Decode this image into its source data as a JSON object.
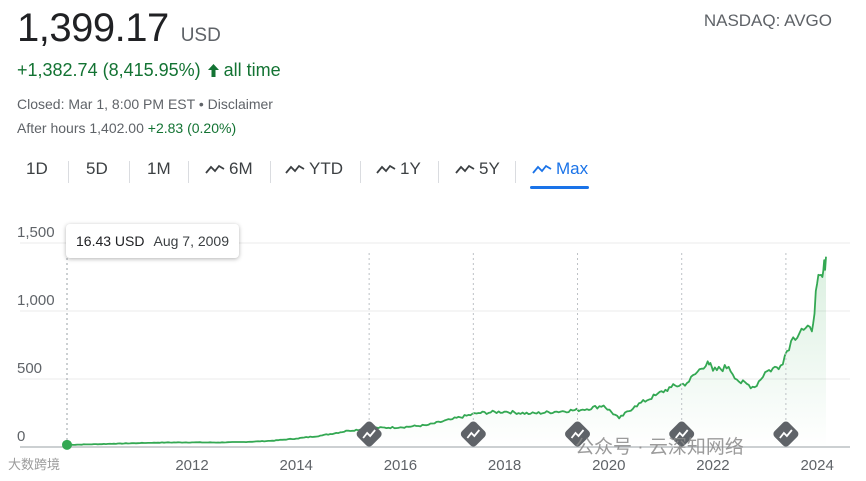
{
  "header": {
    "price": "1,399.17",
    "currency": "USD",
    "exchange": "NASDAQ: AVGO",
    "change": "+1,382.74 (8,415.95%)",
    "change_period": "all time",
    "closed_line": "Closed: Mar 1, 8:00 PM EST • Disclaimer",
    "after_hours_prefix": "After hours 1,402.00",
    "after_hours_change": "+2.83 (0.20%)"
  },
  "tabs": [
    "1D",
    "5D",
    "1M",
    "6M",
    "YTD",
    "1Y",
    "5Y",
    "Max"
  ],
  "active_tab": "Max",
  "tooltip": {
    "price": "16.43 USD",
    "date": "Aug 7, 2009"
  },
  "watermarks": {
    "left": "大数跨境",
    "right": "公众号 · 云深知网络"
  },
  "colors": {
    "line": "#34a853",
    "positive": "#137333",
    "accent": "#1a73e8"
  },
  "chart_data": {
    "type": "area",
    "title": "",
    "xlabel": "",
    "ylabel": "",
    "xlim": [
      2009.6,
      2024.17
    ],
    "ylim": [
      0,
      1500
    ],
    "yticks": [
      0,
      500,
      1000,
      1500
    ],
    "ytick_labels": [
      "0",
      "500",
      "1,000",
      "1,500"
    ],
    "xticks": [
      2012,
      2014,
      2016,
      2018,
      2020,
      2022,
      2024
    ],
    "xtick_labels": [
      "2012",
      "2014",
      "2016",
      "2018",
      "2020",
      "2022",
      "2024"
    ],
    "grid": true,
    "event_markers": [
      2015.4,
      2017.4,
      2019.4,
      2021.4,
      2023.4
    ],
    "series": [
      {
        "x": [
          2009.6,
          2010.0,
          2010.5,
          2011.0,
          2011.5,
          2012.0,
          2012.5,
          2013.0,
          2013.5,
          2014.0,
          2014.5,
          2015.0,
          2015.5,
          2016.0,
          2016.5,
          2017.0,
          2017.5,
          2018.0,
          2018.5,
          2019.0,
          2019.5,
          2019.9,
          2020.2,
          2020.5,
          2020.9,
          2021.2,
          2021.5,
          2021.9,
          2022.0,
          2022.3,
          2022.5,
          2022.8,
          2023.0,
          2023.3,
          2023.5,
          2023.7,
          2023.9,
          2024.0,
          2024.1,
          2024.17
        ],
        "y": [
          16,
          19,
          24,
          29,
          33,
          34,
          33,
          37,
          45,
          62,
          85,
          120,
          140,
          145,
          160,
          205,
          250,
          260,
          245,
          260,
          275,
          305,
          210,
          300,
          380,
          440,
          470,
          630,
          560,
          590,
          480,
          440,
          550,
          600,
          780,
          870,
          850,
          1200,
          1250,
          1399
        ]
      }
    ]
  }
}
